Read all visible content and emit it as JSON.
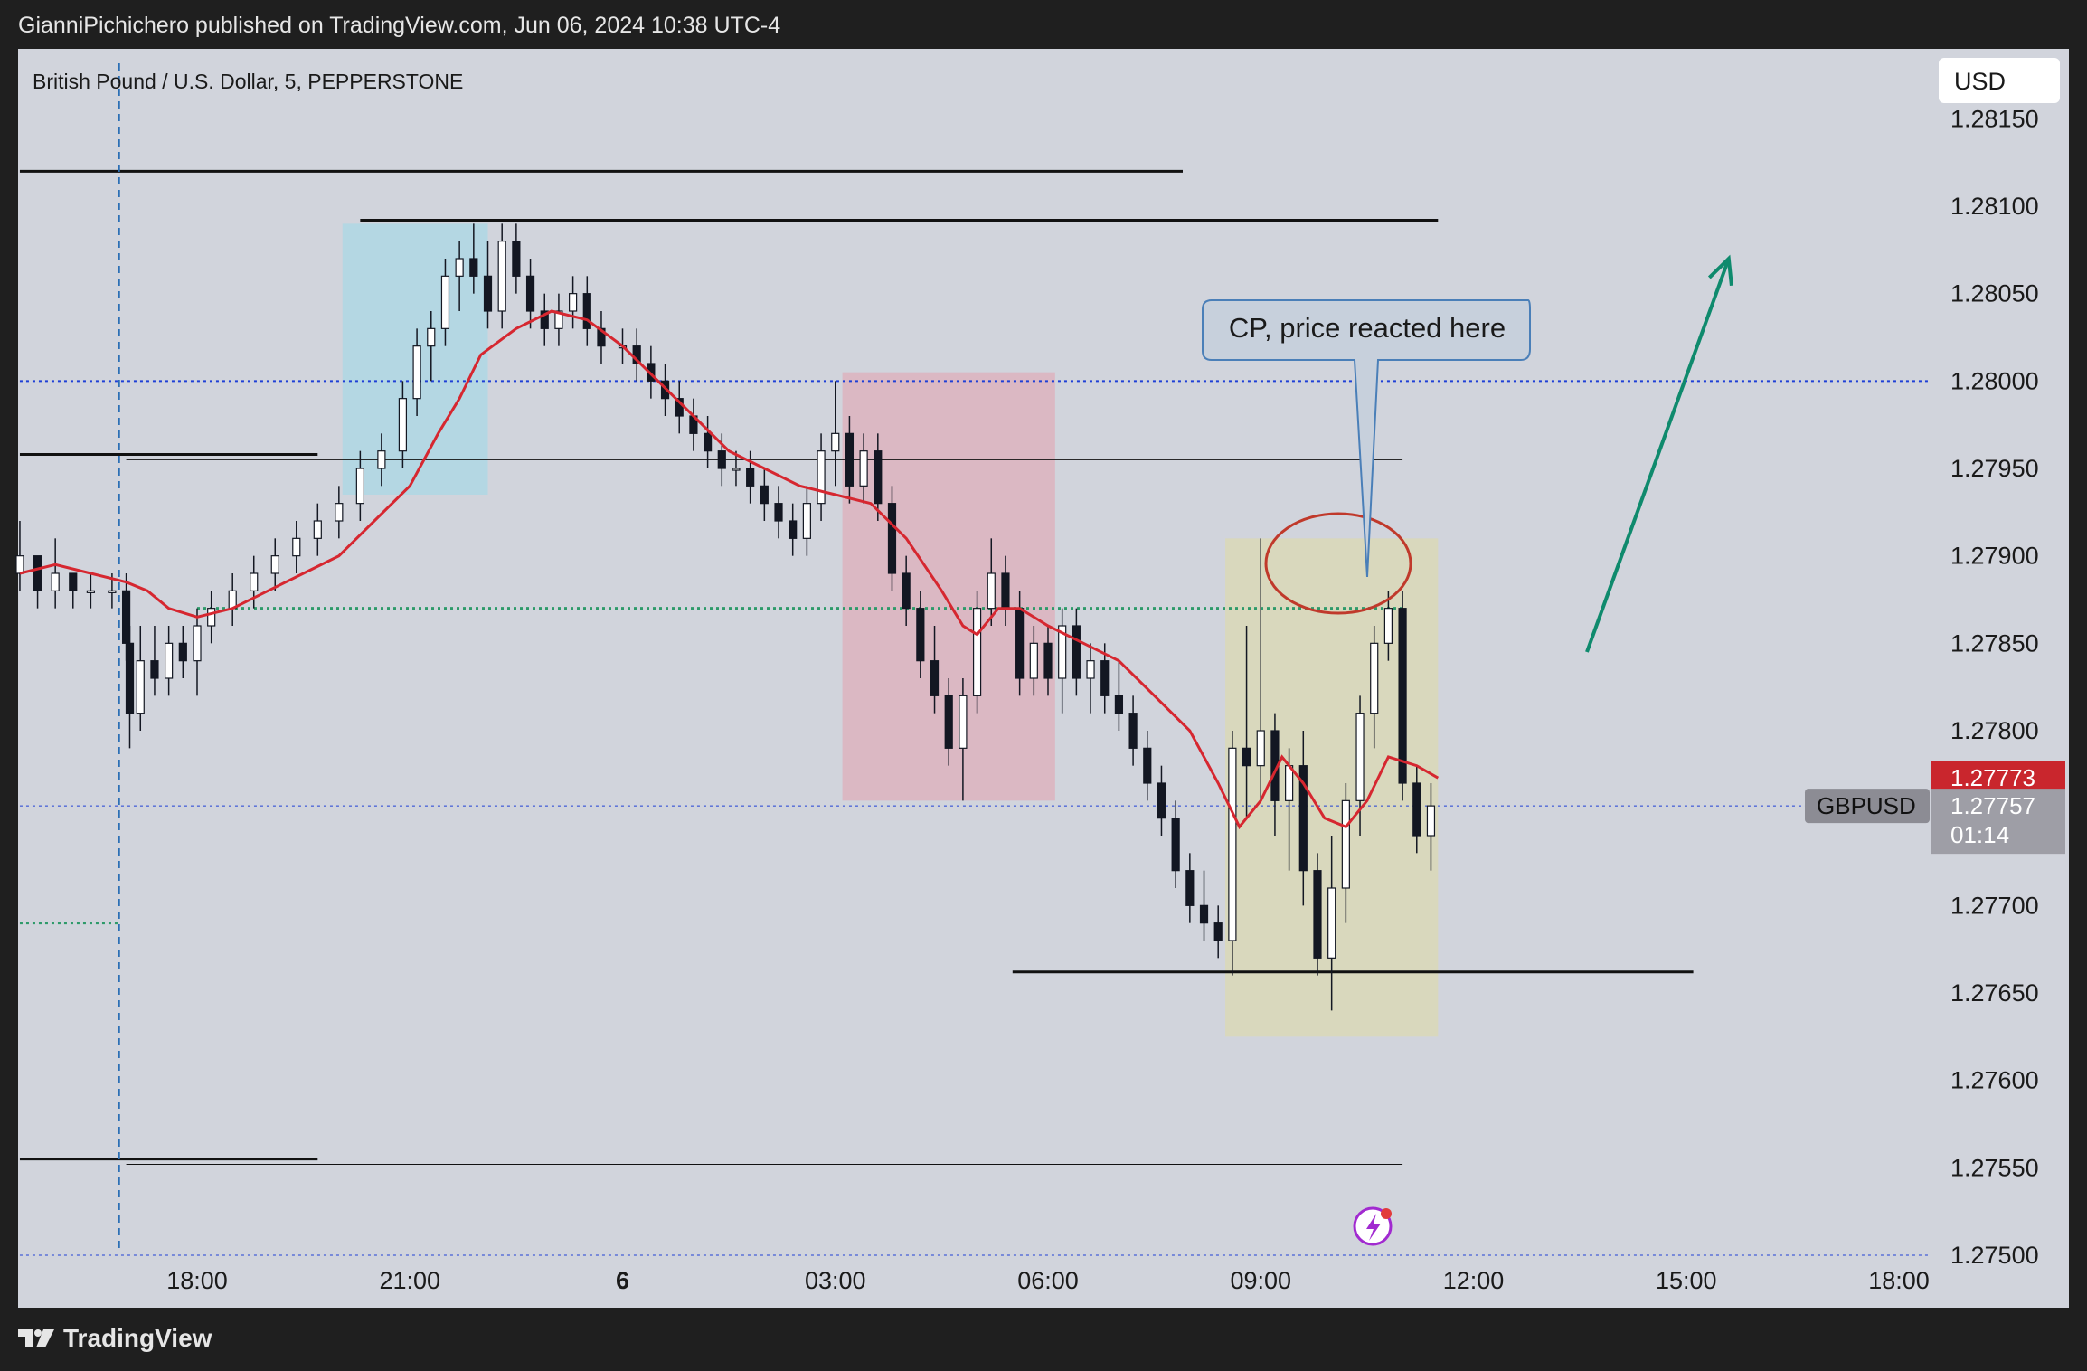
{
  "header": {
    "published": "GianniPichichero published on TradingView.com, Jun 06, 2024 10:38 UTC-4"
  },
  "footer": {
    "brand": "TradingView"
  },
  "colors": {
    "background": "#d1d4dc",
    "frame": "#1f1f1f",
    "ema": "#d62730",
    "up_candle": "#ffffff",
    "down_candle": "#131722",
    "blue_zone": "#b4d7e3",
    "pink_zone": "#dbb8c3",
    "yellow_zone": "#d9d8bd",
    "arrow": "#0f8a6d",
    "dotted_blue": "#1e3fd6",
    "dotted_green": "#2e9a6a",
    "price_tag_red": "#c9262d",
    "ellipse": "#c0392b",
    "callout_fill": "#c7d0dc",
    "callout_stroke": "#4a7fb8"
  },
  "chart_data": {
    "type": "candlestick",
    "symbol_title": "British Pound / U.S. Dollar, 5, PEPPERSTONE",
    "currency": "USD",
    "ticker": "GBPUSD",
    "last_price": "1.27757",
    "countdown": "01:14",
    "ema_price": "1.27773",
    "ylim": [
      1.2747,
      1.2819
    ],
    "y_ticks": [
      "1.28150",
      "1.28100",
      "1.28050",
      "1.28000",
      "1.27950",
      "1.27900",
      "1.27850",
      "1.27800",
      "1.27700",
      "1.27650",
      "1.27600",
      "1.27550",
      "1.27500"
    ],
    "y_tick_values": [
      1.2815,
      1.281,
      1.2805,
      1.28,
      1.2795,
      1.279,
      1.2785,
      1.278,
      1.277,
      1.2765,
      1.276,
      1.2755,
      1.275
    ],
    "x_ticks": [
      {
        "label": "18:00",
        "hours": 18,
        "bold": false
      },
      {
        "label": "21:00",
        "hours": 21,
        "bold": false
      },
      {
        "label": "6",
        "hours": 24,
        "bold": true
      },
      {
        "label": "03:00",
        "hours": 27,
        "bold": false
      },
      {
        "label": "06:00",
        "hours": 30,
        "bold": false
      },
      {
        "label": "09:00",
        "hours": 33,
        "bold": false
      },
      {
        "label": "12:00",
        "hours": 36,
        "bold": false
      },
      {
        "label": "15:00",
        "hours": 39,
        "bold": false
      },
      {
        "label": "18:00",
        "hours": 42,
        "bold": false
      }
    ],
    "ema_path": [
      [
        15.5,
        1.2789
      ],
      [
        16.0,
        1.27895
      ],
      [
        16.5,
        1.2789
      ],
      [
        17.0,
        1.27885
      ],
      [
        17.3,
        1.2788
      ],
      [
        17.6,
        1.2787
      ],
      [
        18.0,
        1.27865
      ],
      [
        18.5,
        1.2787
      ],
      [
        19.0,
        1.2788
      ],
      [
        19.5,
        1.2789
      ],
      [
        20.0,
        1.279
      ],
      [
        20.5,
        1.2792
      ],
      [
        21.0,
        1.2794
      ],
      [
        21.4,
        1.2797
      ],
      [
        21.7,
        1.2799
      ],
      [
        22.0,
        1.28015
      ],
      [
        22.5,
        1.2803
      ],
      [
        23.0,
        1.2804
      ],
      [
        23.5,
        1.28035
      ],
      [
        24.0,
        1.2802
      ],
      [
        24.5,
        1.28
      ],
      [
        25.0,
        1.2798
      ],
      [
        25.5,
        1.2796
      ],
      [
        26.0,
        1.2795
      ],
      [
        26.5,
        1.2794
      ],
      [
        27.0,
        1.27935
      ],
      [
        27.5,
        1.2793
      ],
      [
        28.0,
        1.2791
      ],
      [
        28.5,
        1.2788
      ],
      [
        28.8,
        1.2786
      ],
      [
        29.0,
        1.27855
      ],
      [
        29.3,
        1.2787
      ],
      [
        29.6,
        1.2787
      ],
      [
        30.0,
        1.2786
      ],
      [
        30.5,
        1.2785
      ],
      [
        31.0,
        1.2784
      ],
      [
        31.5,
        1.2782
      ],
      [
        32.0,
        1.278
      ],
      [
        32.4,
        1.2777
      ],
      [
        32.7,
        1.27745
      ],
      [
        33.0,
        1.2776
      ],
      [
        33.3,
        1.27785
      ],
      [
        33.6,
        1.2777
      ],
      [
        33.9,
        1.2775
      ],
      [
        34.2,
        1.27745
      ],
      [
        34.5,
        1.2776
      ],
      [
        34.8,
        1.27785
      ],
      [
        35.2,
        1.2778
      ],
      [
        35.5,
        1.27773
      ]
    ],
    "candles": [
      [
        15.5,
        1.2789,
        1.2792,
        1.2788,
        1.279
      ],
      [
        15.75,
        1.279,
        1.279,
        1.2787,
        1.2788
      ],
      [
        16.0,
        1.2788,
        1.2791,
        1.2787,
        1.2789
      ],
      [
        16.25,
        1.2789,
        1.2789,
        1.2787,
        1.2788
      ],
      [
        16.5,
        1.2788,
        1.2789,
        1.2787,
        1.2788
      ],
      [
        16.8,
        1.2788,
        1.2789,
        1.2787,
        1.2788
      ],
      [
        17.0,
        1.2788,
        1.2789,
        1.2784,
        1.2785
      ],
      [
        17.05,
        1.2785,
        1.2786,
        1.2779,
        1.2781
      ],
      [
        17.2,
        1.2781,
        1.2786,
        1.278,
        1.2784
      ],
      [
        17.4,
        1.2784,
        1.2786,
        1.2782,
        1.2783
      ],
      [
        17.6,
        1.2783,
        1.2786,
        1.2782,
        1.2785
      ],
      [
        17.8,
        1.2785,
        1.2786,
        1.2783,
        1.2784
      ],
      [
        18.0,
        1.2784,
        1.2787,
        1.2782,
        1.2786
      ],
      [
        18.2,
        1.2786,
        1.2788,
        1.2785,
        1.2787
      ],
      [
        18.5,
        1.2787,
        1.2789,
        1.2786,
        1.2788
      ],
      [
        18.8,
        1.2788,
        1.279,
        1.2787,
        1.2789
      ],
      [
        19.1,
        1.2789,
        1.2791,
        1.2788,
        1.279
      ],
      [
        19.4,
        1.279,
        1.2792,
        1.2789,
        1.2791
      ],
      [
        19.7,
        1.2791,
        1.2793,
        1.279,
        1.2792
      ],
      [
        20.0,
        1.2792,
        1.2794,
        1.2791,
        1.2793
      ],
      [
        20.3,
        1.2793,
        1.2796,
        1.2792,
        1.2795
      ],
      [
        20.6,
        1.2795,
        1.2797,
        1.2794,
        1.2796
      ],
      [
        20.9,
        1.2796,
        1.28,
        1.2795,
        1.2799
      ],
      [
        21.1,
        1.2799,
        1.2803,
        1.2798,
        1.2802
      ],
      [
        21.3,
        1.2802,
        1.2804,
        1.28,
        1.2803
      ],
      [
        21.5,
        1.2803,
        1.2807,
        1.2802,
        1.2806
      ],
      [
        21.7,
        1.2806,
        1.2808,
        1.2804,
        1.2807
      ],
      [
        21.9,
        1.2807,
        1.2809,
        1.2805,
        1.2806
      ],
      [
        22.1,
        1.2806,
        1.2808,
        1.2803,
        1.2804
      ],
      [
        22.3,
        1.2804,
        1.2809,
        1.2803,
        1.2808
      ],
      [
        22.5,
        1.2808,
        1.2809,
        1.2805,
        1.2806
      ],
      [
        22.7,
        1.2806,
        1.2807,
        1.2803,
        1.2804
      ],
      [
        22.9,
        1.2804,
        1.2805,
        1.2802,
        1.2803
      ],
      [
        23.1,
        1.2803,
        1.2805,
        1.2802,
        1.2804
      ],
      [
        23.3,
        1.2804,
        1.2806,
        1.2803,
        1.2805
      ],
      [
        23.5,
        1.2805,
        1.2806,
        1.2802,
        1.2803
      ],
      [
        23.7,
        1.2803,
        1.2804,
        1.2801,
        1.2802
      ],
      [
        24.0,
        1.2802,
        1.2803,
        1.2801,
        1.2802
      ],
      [
        24.2,
        1.2802,
        1.2803,
        1.28,
        1.2801
      ],
      [
        24.4,
        1.2801,
        1.2802,
        1.2799,
        1.28
      ],
      [
        24.6,
        1.28,
        1.2801,
        1.2798,
        1.2799
      ],
      [
        24.8,
        1.2799,
        1.28,
        1.2797,
        1.2798
      ],
      [
        25.0,
        1.2798,
        1.2799,
        1.2796,
        1.2797
      ],
      [
        25.2,
        1.2797,
        1.2798,
        1.2795,
        1.2796
      ],
      [
        25.4,
        1.2796,
        1.2797,
        1.2794,
        1.2795
      ],
      [
        25.6,
        1.2795,
        1.2796,
        1.2794,
        1.2795
      ],
      [
        25.8,
        1.2795,
        1.2796,
        1.2793,
        1.2794
      ],
      [
        26.0,
        1.2794,
        1.2795,
        1.2792,
        1.2793
      ],
      [
        26.2,
        1.2793,
        1.2794,
        1.2791,
        1.2792
      ],
      [
        26.4,
        1.2792,
        1.2793,
        1.279,
        1.2791
      ],
      [
        26.6,
        1.2791,
        1.2794,
        1.279,
        1.2793
      ],
      [
        26.8,
        1.2793,
        1.2797,
        1.2792,
        1.2796
      ],
      [
        27.0,
        1.2796,
        1.28,
        1.2794,
        1.2797
      ],
      [
        27.2,
        1.2797,
        1.2798,
        1.2793,
        1.2794
      ],
      [
        27.4,
        1.2794,
        1.2797,
        1.2793,
        1.2796
      ],
      [
        27.6,
        1.2796,
        1.2797,
        1.2792,
        1.2793
      ],
      [
        27.8,
        1.2793,
        1.2794,
        1.2788,
        1.2789
      ],
      [
        28.0,
        1.2789,
        1.279,
        1.2786,
        1.2787
      ],
      [
        28.2,
        1.2787,
        1.2788,
        1.2783,
        1.2784
      ],
      [
        28.4,
        1.2784,
        1.2786,
        1.2781,
        1.2782
      ],
      [
        28.6,
        1.2782,
        1.2783,
        1.2778,
        1.2779
      ],
      [
        28.8,
        1.2779,
        1.2783,
        1.2776,
        1.2782
      ],
      [
        29.0,
        1.2782,
        1.2788,
        1.2781,
        1.2787
      ],
      [
        29.2,
        1.2787,
        1.2791,
        1.2786,
        1.2789
      ],
      [
        29.4,
        1.2789,
        1.279,
        1.2786,
        1.2787
      ],
      [
        29.6,
        1.2787,
        1.2788,
        1.2782,
        1.2783
      ],
      [
        29.8,
        1.2783,
        1.2786,
        1.2782,
        1.2785
      ],
      [
        30.0,
        1.2785,
        1.2786,
        1.2782,
        1.2783
      ],
      [
        30.2,
        1.2783,
        1.2787,
        1.2781,
        1.2786
      ],
      [
        30.4,
        1.2786,
        1.2787,
        1.2782,
        1.2783
      ],
      [
        30.6,
        1.2783,
        1.2785,
        1.2781,
        1.2784
      ],
      [
        30.8,
        1.2784,
        1.2785,
        1.2781,
        1.2782
      ],
      [
        31.0,
        1.2782,
        1.2784,
        1.278,
        1.2781
      ],
      [
        31.2,
        1.2781,
        1.2782,
        1.2778,
        1.2779
      ],
      [
        31.4,
        1.2779,
        1.278,
        1.2776,
        1.2777
      ],
      [
        31.6,
        1.2777,
        1.2778,
        1.2774,
        1.2775
      ],
      [
        31.8,
        1.2775,
        1.2776,
        1.2771,
        1.2772
      ],
      [
        32.0,
        1.2772,
        1.2773,
        1.2769,
        1.277
      ],
      [
        32.2,
        1.277,
        1.2772,
        1.2768,
        1.2769
      ],
      [
        32.4,
        1.2769,
        1.277,
        1.2767,
        1.2768
      ],
      [
        32.6,
        1.2768,
        1.278,
        1.2766,
        1.2779
      ],
      [
        32.8,
        1.2779,
        1.2786,
        1.2775,
        1.2778
      ],
      [
        33.0,
        1.2778,
        1.2791,
        1.2776,
        1.278
      ],
      [
        33.2,
        1.278,
        1.2781,
        1.2774,
        1.2776
      ],
      [
        33.4,
        1.2776,
        1.2779,
        1.2772,
        1.2778
      ],
      [
        33.6,
        1.2778,
        1.278,
        1.277,
        1.2772
      ],
      [
        33.8,
        1.2772,
        1.2773,
        1.2766,
        1.2767
      ],
      [
        34.0,
        1.2767,
        1.2774,
        1.2764,
        1.2771
      ],
      [
        34.2,
        1.2771,
        1.2777,
        1.2769,
        1.2776
      ],
      [
        34.4,
        1.2776,
        1.2782,
        1.2774,
        1.2781
      ],
      [
        34.6,
        1.2781,
        1.2786,
        1.2779,
        1.2785
      ],
      [
        34.8,
        1.2785,
        1.2788,
        1.2784,
        1.2787
      ],
      [
        35.0,
        1.2787,
        1.2788,
        1.2776,
        1.2777
      ],
      [
        35.2,
        1.2777,
        1.2778,
        1.2773,
        1.2774
      ],
      [
        35.4,
        1.2774,
        1.2777,
        1.2772,
        1.27757
      ]
    ],
    "zones": [
      {
        "t0": 20.05,
        "t1": 22.1,
        "p0": 1.2809,
        "p1": 1.27935,
        "color": "#b4d7e3"
      },
      {
        "t0": 27.1,
        "t1": 30.1,
        "p0": 1.28005,
        "p1": 1.2776,
        "color": "#dbb8c3"
      },
      {
        "t0": 32.5,
        "t1": 35.5,
        "p0": 1.2791,
        "p1": 1.27625,
        "color": "#d9d8bd"
      }
    ],
    "levels": [
      {
        "t0": 15.5,
        "t1": 31.9,
        "p": 1.2812,
        "w": 3
      },
      {
        "t0": 20.3,
        "t1": 35.5,
        "p": 1.28092,
        "w": 3
      },
      {
        "t0": 15.5,
        "t1": 19.7,
        "p": 1.27958,
        "w": 3
      },
      {
        "t0": 17.0,
        "t1": 35.0,
        "p": 1.27955,
        "w": 1
      },
      {
        "t0": 29.5,
        "t1": 39.1,
        "p": 1.27662,
        "w": 3
      },
      {
        "t0": 15.5,
        "t1": 19.7,
        "p": 1.27555,
        "w": 3
      },
      {
        "t0": 17.0,
        "t1": 35.0,
        "p": 1.27552,
        "w": 1
      }
    ],
    "dotted_levels": [
      {
        "t0": 15.5,
        "t1": 42.5,
        "p": 1.28,
        "color": "#1e3fd6",
        "w": 2
      },
      {
        "t0": 15.5,
        "t1": 42.5,
        "p": 1.27757,
        "color": "#1e3fd6",
        "w": 1
      },
      {
        "t0": 15.5,
        "t1": 42.5,
        "p": 1.275,
        "color": "#1e3fd6",
        "w": 1
      },
      {
        "t0": 18.0,
        "t1": 35.0,
        "p": 1.2787,
        "color": "#2e9a6a",
        "w": 3
      },
      {
        "t0": 15.5,
        "t1": 16.9,
        "p": 1.2769,
        "color": "#2e9a6a",
        "w": 3
      }
    ],
    "vline_hours": 16.9,
    "annotation": "CP, price reacted here",
    "arrow": {
      "t0": 37.6,
      "p0": 1.27845,
      "t1": 39.6,
      "p1": 1.2807
    }
  }
}
